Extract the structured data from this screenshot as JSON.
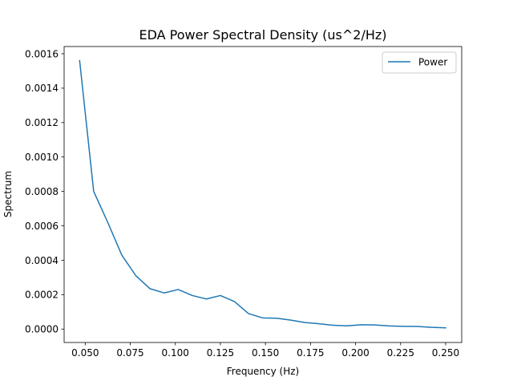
{
  "chart_data": {
    "type": "line",
    "title": "EDA Power Spectral Density (us^2/Hz)",
    "xlabel": "Frequency (Hz)",
    "ylabel": "Spectrum",
    "xlim": [
      0.0383,
      0.2589
    ],
    "ylim": [
      -7.8e-05,
      0.001642
    ],
    "xticks": [
      0.05,
      0.075,
      0.1,
      0.125,
      0.15,
      0.175,
      0.2,
      0.225,
      0.25
    ],
    "xtick_labels": [
      "0.050",
      "0.075",
      "0.100",
      "0.125",
      "0.150",
      "0.175",
      "0.200",
      "0.225",
      "0.250"
    ],
    "yticks": [
      0.0,
      0.0002,
      0.0004,
      0.0006,
      0.0008,
      0.001,
      0.0012,
      0.0014,
      0.0016
    ],
    "ytick_labels": [
      "0.0000",
      "0.0002",
      "0.0004",
      "0.0006",
      "0.0008",
      "0.0010",
      "0.0012",
      "0.0014",
      "0.0016"
    ],
    "grid": false,
    "legend_position": "top-right",
    "series": [
      {
        "name": "Power",
        "color": "#1f77b4",
        "x": [
          0.0469,
          0.0547,
          0.0625,
          0.0703,
          0.0781,
          0.0859,
          0.0938,
          0.1016,
          0.1094,
          0.1172,
          0.125,
          0.1328,
          0.1406,
          0.1484,
          0.1563,
          0.1641,
          0.1719,
          0.1797,
          0.1875,
          0.1953,
          0.2031,
          0.2109,
          0.2188,
          0.2266,
          0.2344,
          0.2422,
          0.25
        ],
        "y": [
          0.00156,
          0.0008,
          0.00062,
          0.00043,
          0.00031,
          0.000235,
          0.00021,
          0.00023,
          0.000195,
          0.000175,
          0.000195,
          0.00016,
          9e-05,
          6.5e-05,
          6.3e-05,
          5.2e-05,
          3.8e-05,
          3.1e-05,
          2.2e-05,
          1.9e-05,
          2.5e-05,
          2.4e-05,
          1.8e-05,
          1.6e-05,
          1.5e-05,
          1e-05,
          7e-06
        ]
      }
    ]
  }
}
